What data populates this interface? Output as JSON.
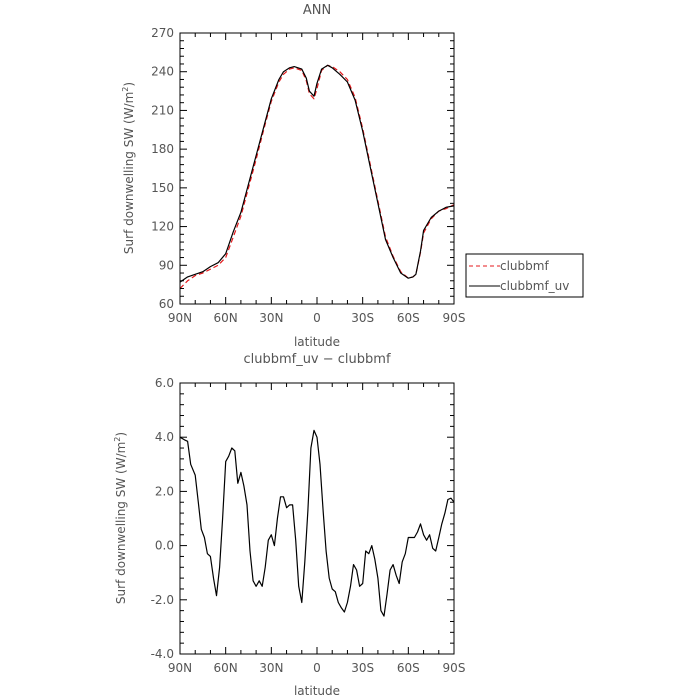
{
  "chart_data": [
    {
      "type": "line",
      "title": "ANN",
      "xlabel": "latitude",
      "ylabel_main": "Surf downwelling SW (W/m",
      "ylabel_sup": "2",
      "ylabel_end": ")",
      "xlim": [
        90,
        -90
      ],
      "ylim": [
        60,
        270
      ],
      "xticks": [
        90,
        60,
        30,
        0,
        -30,
        -60,
        -90
      ],
      "xtick_labels": [
        "90N",
        "60N",
        "30N",
        "0",
        "30S",
        "60S",
        "90S"
      ],
      "yticks": [
        60,
        90,
        120,
        150,
        180,
        210,
        240,
        270
      ],
      "ytick_labels": [
        "60",
        "90",
        "120",
        "150",
        "180",
        "210",
        "240",
        "270"
      ],
      "legend_position": "right",
      "series": [
        {
          "name": "clubbmf",
          "color": "#e41a1c",
          "dash": "dashed",
          "x": [
            90,
            85,
            80,
            75,
            70,
            65,
            60,
            55,
            50,
            45,
            40,
            35,
            30,
            25,
            22,
            18,
            15,
            10,
            7,
            5,
            2,
            0,
            -3,
            -7,
            -10,
            -15,
            -20,
            -25,
            -30,
            -35,
            -40,
            -45,
            -50,
            -55,
            -60,
            -63,
            -65,
            -68,
            -70,
            -75,
            -80,
            -85,
            -90
          ],
          "y": [
            72,
            78,
            82,
            84,
            87,
            90,
            96,
            112,
            128,
            150,
            172,
            195,
            217,
            232,
            238,
            242,
            243,
            241,
            233,
            223,
            219,
            227,
            241,
            245,
            244,
            240,
            234,
            220,
            196,
            168,
            140,
            112,
            97,
            85,
            80,
            81,
            83,
            100,
            115,
            126,
            132,
            134,
            137
          ]
        },
        {
          "name": "clubbmf_uv",
          "color": "#000000",
          "dash": "solid",
          "x": [
            90,
            85,
            80,
            75,
            70,
            65,
            60,
            55,
            50,
            45,
            40,
            35,
            30,
            25,
            22,
            18,
            15,
            10,
            7,
            5,
            2,
            0,
            -3,
            -7,
            -10,
            -15,
            -20,
            -25,
            -30,
            -35,
            -40,
            -45,
            -50,
            -55,
            -60,
            -63,
            -65,
            -68,
            -70,
            -75,
            -80,
            -85,
            -90
          ],
          "y": [
            77,
            81,
            83,
            85,
            89,
            92,
            99,
            116,
            131,
            153,
            175,
            197,
            219,
            234,
            240,
            243,
            244,
            242,
            235,
            225,
            221,
            231,
            242,
            245,
            243,
            238,
            232,
            218,
            194,
            166,
            138,
            110,
            96,
            84,
            80,
            81,
            83,
            101,
            117,
            127,
            132,
            135,
            136
          ]
        }
      ]
    },
    {
      "type": "line",
      "title": "clubbmf_uv − clubbmf",
      "xlabel": "latitude",
      "ylabel_main": "Surf downwelling SW (W/m",
      "ylabel_sup": "2",
      "ylabel_end": ")",
      "xlim": [
        90,
        -90
      ],
      "ylim": [
        -4.0,
        6.0
      ],
      "xticks": [
        90,
        60,
        30,
        0,
        -30,
        -60,
        -90
      ],
      "xtick_labels": [
        "90N",
        "60N",
        "30N",
        "0",
        "30S",
        "60S",
        "90S"
      ],
      "yticks": [
        -4.0,
        -2.0,
        0.0,
        2.0,
        4.0,
        6.0
      ],
      "ytick_labels": [
        "-4.0",
        "-2.0",
        "0.0",
        "2.0",
        "4.0",
        "6.0"
      ],
      "series": [
        {
          "name": "",
          "color": "#000000",
          "dash": "solid",
          "x": [
            90,
            87,
            85,
            83,
            80,
            78,
            76,
            74,
            72,
            70,
            68,
            66,
            64,
            62,
            60,
            58,
            56,
            54,
            52,
            50,
            48,
            46,
            44,
            42,
            40,
            38,
            36,
            34,
            32,
            30,
            28,
            26,
            24,
            22,
            20,
            18,
            16,
            14,
            12,
            10,
            8,
            6,
            4,
            2,
            0,
            -2,
            -4,
            -6,
            -8,
            -10,
            -12,
            -14,
            -16,
            -18,
            -20,
            -22,
            -24,
            -26,
            -28,
            -30,
            -32,
            -34,
            -36,
            -38,
            -40,
            -42,
            -44,
            -46,
            -48,
            -50,
            -52,
            -54,
            -56,
            -58,
            -60,
            -62,
            -64,
            -66,
            -68,
            -70,
            -72,
            -74,
            -76,
            -78,
            -80,
            -82,
            -84,
            -86,
            -88,
            -90
          ],
          "y": [
            4.0,
            3.9,
            3.85,
            3.0,
            2.6,
            1.6,
            0.6,
            0.3,
            -0.3,
            -0.4,
            -1.2,
            -1.85,
            -0.8,
            1.0,
            3.1,
            3.3,
            3.6,
            3.5,
            2.3,
            2.7,
            2.2,
            1.5,
            -0.2,
            -1.3,
            -1.5,
            -1.3,
            -1.5,
            -0.8,
            0.2,
            0.4,
            0.0,
            1.0,
            1.8,
            1.8,
            1.4,
            1.5,
            1.5,
            0.2,
            -1.5,
            -2.1,
            -0.6,
            1.3,
            3.6,
            4.25,
            4.0,
            3.0,
            1.3,
            -0.2,
            -1.2,
            -1.6,
            -1.7,
            -2.1,
            -2.3,
            -2.45,
            -2.1,
            -1.5,
            -0.7,
            -0.9,
            -1.5,
            -1.4,
            -0.2,
            -0.3,
            0.0,
            -0.5,
            -1.2,
            -2.4,
            -2.6,
            -1.8,
            -0.9,
            -0.7,
            -1.1,
            -1.4,
            -0.6,
            -0.3,
            0.3,
            0.3,
            0.3,
            0.5,
            0.8,
            0.4,
            0.2,
            0.4,
            -0.1,
            -0.2,
            0.3,
            0.8,
            1.2,
            1.7,
            1.75,
            1.6
          ]
        }
      ]
    }
  ]
}
